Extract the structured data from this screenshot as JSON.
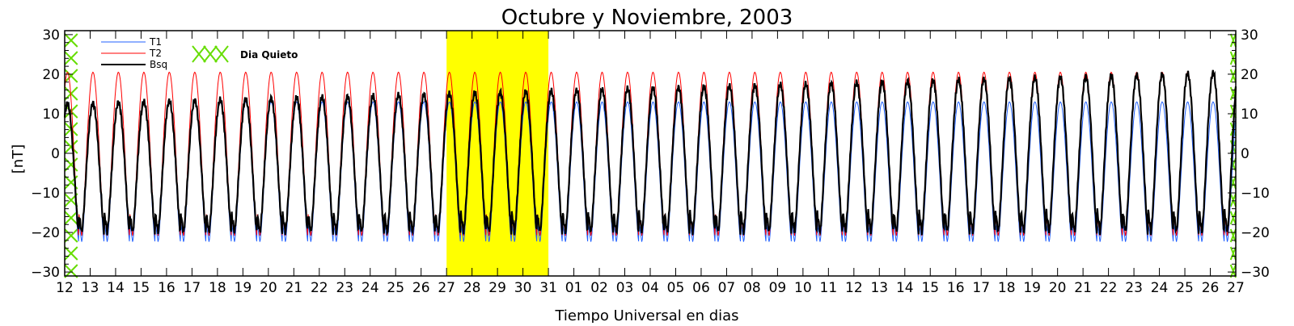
{
  "chart_data": {
    "type": "line",
    "title": "Octubre y Noviembre, 2003",
    "xlabel": "Tiempo Universal en dias",
    "ylabel": "[nT]",
    "ylim": [
      -31,
      31
    ],
    "yticks": [
      -30,
      -20,
      -10,
      0,
      10,
      20,
      30
    ],
    "xticks": [
      "12",
      "13",
      "14",
      "15",
      "16",
      "17",
      "18",
      "19",
      "20",
      "21",
      "22",
      "23",
      "24",
      "25",
      "26",
      "27",
      "28",
      "29",
      "30",
      "31",
      "01",
      "02",
      "03",
      "04",
      "05",
      "06",
      "07",
      "08",
      "09",
      "10",
      "11",
      "12",
      "13",
      "14",
      "15",
      "16",
      "17",
      "18",
      "19",
      "20",
      "21",
      "22",
      "23",
      "24",
      "25",
      "26",
      "27"
    ],
    "highlight": {
      "from_day_index": 15,
      "to_day_index": 19,
      "color": "#ffff00",
      "days": [
        "27",
        "28",
        "29",
        "30",
        "31"
      ]
    },
    "quiet_day_markers": [
      {
        "start_day_index": 0,
        "end_day_index": 0.5
      },
      {
        "start_day_index": 45.8,
        "end_day_index": 46.4
      }
    ],
    "legend": {
      "placement": "top-left",
      "entries": [
        {
          "label": "T1",
          "color": "#2060ff"
        },
        {
          "label": "T2",
          "color": "#ff0000"
        },
        {
          "label": "Bsq",
          "color": "#000000"
        }
      ],
      "marker_label": "Dia Quieto",
      "marker_color": "#66dd00"
    },
    "series": [
      {
        "name": "T1",
        "color": "#2060ff",
        "daily_max": 13,
        "daily_min": -22.5,
        "period_days": 1
      },
      {
        "name": "T2",
        "color": "#ff0000",
        "daily_max": 20.5,
        "daily_min": -21,
        "period_days": 1
      },
      {
        "name": "Bsq",
        "color": "#000000",
        "daily_max_start": 12.5,
        "daily_max_end": 20.5,
        "daily_min": -20,
        "period_days": 1
      }
    ],
    "right_axis": true
  }
}
